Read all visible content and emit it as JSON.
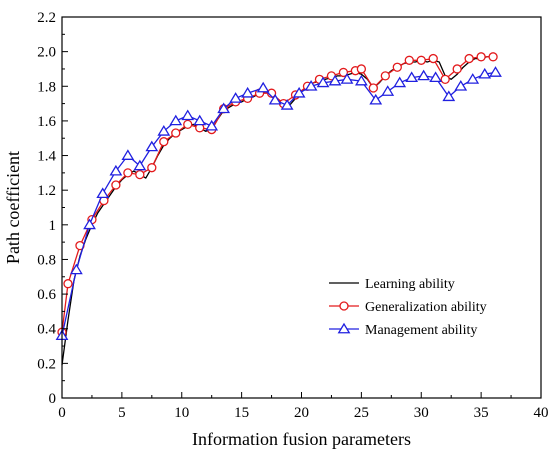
{
  "chart_data": {
    "type": "line",
    "title": "",
    "xlabel": "Information fusion parameters",
    "ylabel": "Path coefficient",
    "xlim": [
      0,
      40
    ],
    "ylim": [
      0,
      2.2
    ],
    "xticks": [
      0,
      5,
      10,
      15,
      20,
      25,
      30,
      35,
      40
    ],
    "yticks": [
      0,
      0.2,
      0.4,
      0.6,
      0.8,
      1,
      1.2,
      1.4,
      1.6,
      1.8,
      2,
      2.2
    ],
    "ytick_labels": [
      "0",
      "0.2",
      "0.4",
      "0.6",
      "0.8",
      "1",
      "1.2",
      "1.4",
      "1.6",
      "1.8",
      "2.0",
      "2.2"
    ],
    "grid": false,
    "legend_position": "bottom-right",
    "series": [
      {
        "name": "Learning ability",
        "color": "#000000",
        "marker": "none",
        "points": [
          [
            0,
            0.19
          ],
          [
            0.5,
            0.45
          ],
          [
            1,
            0.68
          ],
          [
            1.5,
            0.82
          ],
          [
            2,
            0.92
          ],
          [
            2.5,
            1.0
          ],
          [
            3,
            1.07
          ],
          [
            3.5,
            1.12
          ],
          [
            4,
            1.17
          ],
          [
            4.5,
            1.22
          ],
          [
            5,
            1.26
          ],
          [
            5.5,
            1.29
          ],
          [
            6,
            1.31
          ],
          [
            6.5,
            1.29
          ],
          [
            7,
            1.27
          ],
          [
            7.5,
            1.33
          ],
          [
            8,
            1.4
          ],
          [
            8.5,
            1.46
          ],
          [
            9,
            1.5
          ],
          [
            9.5,
            1.53
          ],
          [
            10,
            1.55
          ],
          [
            10.5,
            1.57
          ],
          [
            11,
            1.58
          ],
          [
            11.5,
            1.56
          ],
          [
            12,
            1.54
          ],
          [
            12.5,
            1.55
          ],
          [
            13,
            1.61
          ],
          [
            13.5,
            1.66
          ],
          [
            14,
            1.68
          ],
          [
            14.5,
            1.7
          ],
          [
            15,
            1.71
          ],
          [
            15.5,
            1.73
          ],
          [
            16,
            1.74
          ],
          [
            16.5,
            1.76
          ],
          [
            17,
            1.77
          ],
          [
            17.5,
            1.76
          ],
          [
            18,
            1.72
          ],
          [
            18.5,
            1.7
          ],
          [
            19,
            1.69
          ],
          [
            19.5,
            1.73
          ],
          [
            20,
            1.77
          ],
          [
            20.5,
            1.8
          ],
          [
            21,
            1.82
          ],
          [
            21.5,
            1.83
          ],
          [
            22,
            1.84
          ],
          [
            22.5,
            1.85
          ],
          [
            23,
            1.86
          ],
          [
            23.5,
            1.86
          ],
          [
            24,
            1.87
          ],
          [
            24.5,
            1.88
          ],
          [
            25,
            1.87
          ],
          [
            25.5,
            1.84
          ],
          [
            26,
            1.79
          ],
          [
            26.5,
            1.82
          ],
          [
            27,
            1.86
          ],
          [
            27.5,
            1.89
          ],
          [
            28,
            1.91
          ],
          [
            28.5,
            1.93
          ],
          [
            29,
            1.94
          ],
          [
            29.5,
            1.94
          ],
          [
            30,
            1.95
          ],
          [
            30.5,
            1.94
          ],
          [
            31,
            1.95
          ],
          [
            31.5,
            1.94
          ],
          [
            32,
            1.86
          ],
          [
            32.5,
            1.84
          ],
          [
            33,
            1.87
          ],
          [
            33.5,
            1.91
          ],
          [
            34,
            1.94
          ],
          [
            34.5,
            1.96
          ],
          [
            35,
            1.96
          ],
          [
            35.5,
            1.97
          ],
          [
            36,
            1.97
          ],
          [
            36.3,
            1.97
          ]
        ]
      },
      {
        "name": "Generalization ability",
        "color": "#e31a1c",
        "marker": "circle",
        "points": [
          [
            0,
            0.38
          ],
          [
            0.5,
            0.66
          ],
          [
            1.5,
            0.88
          ],
          [
            2.5,
            1.03
          ],
          [
            3.5,
            1.14
          ],
          [
            4.5,
            1.23
          ],
          [
            5.5,
            1.3
          ],
          [
            6.5,
            1.29
          ],
          [
            7.5,
            1.33
          ],
          [
            8.5,
            1.48
          ],
          [
            9.5,
            1.53
          ],
          [
            10.5,
            1.58
          ],
          [
            11.5,
            1.56
          ],
          [
            12.5,
            1.55
          ],
          [
            13.5,
            1.67
          ],
          [
            14.5,
            1.71
          ],
          [
            15.5,
            1.73
          ],
          [
            16.5,
            1.76
          ],
          [
            17.5,
            1.76
          ],
          [
            18.5,
            1.7
          ],
          [
            19.5,
            1.75
          ],
          [
            20.5,
            1.8
          ],
          [
            21.5,
            1.84
          ],
          [
            22.5,
            1.86
          ],
          [
            23.5,
            1.88
          ],
          [
            24.5,
            1.89
          ],
          [
            25,
            1.9
          ],
          [
            26,
            1.79
          ],
          [
            27,
            1.86
          ],
          [
            28,
            1.91
          ],
          [
            29,
            1.95
          ],
          [
            30,
            1.95
          ],
          [
            31,
            1.96
          ],
          [
            32,
            1.84
          ],
          [
            33,
            1.9
          ],
          [
            34,
            1.96
          ],
          [
            35,
            1.97
          ],
          [
            36,
            1.97
          ]
        ]
      },
      {
        "name": "Management ability",
        "color": "#2020e0",
        "marker": "triangle",
        "points": [
          [
            0,
            0.36
          ],
          [
            1.2,
            0.74
          ],
          [
            2.3,
            1.0
          ],
          [
            3.4,
            1.18
          ],
          [
            4.5,
            1.31
          ],
          [
            5.5,
            1.4
          ],
          [
            6.5,
            1.34
          ],
          [
            7.5,
            1.45
          ],
          [
            8.5,
            1.54
          ],
          [
            9.5,
            1.6
          ],
          [
            10.5,
            1.63
          ],
          [
            11.5,
            1.6
          ],
          [
            12.5,
            1.57
          ],
          [
            13.5,
            1.67
          ],
          [
            14.5,
            1.73
          ],
          [
            15.5,
            1.76
          ],
          [
            16.8,
            1.79
          ],
          [
            17.8,
            1.72
          ],
          [
            18.8,
            1.69
          ],
          [
            19.8,
            1.76
          ],
          [
            20.8,
            1.8
          ],
          [
            21.8,
            1.82
          ],
          [
            22.8,
            1.83
          ],
          [
            23.8,
            1.84
          ],
          [
            25,
            1.83
          ],
          [
            26.2,
            1.72
          ],
          [
            27.2,
            1.77
          ],
          [
            28.2,
            1.82
          ],
          [
            29.2,
            1.85
          ],
          [
            30.2,
            1.86
          ],
          [
            31.2,
            1.85
          ],
          [
            32.3,
            1.74
          ],
          [
            33.3,
            1.8
          ],
          [
            34.3,
            1.84
          ],
          [
            35.3,
            1.87
          ],
          [
            36.2,
            1.88
          ]
        ]
      }
    ]
  }
}
